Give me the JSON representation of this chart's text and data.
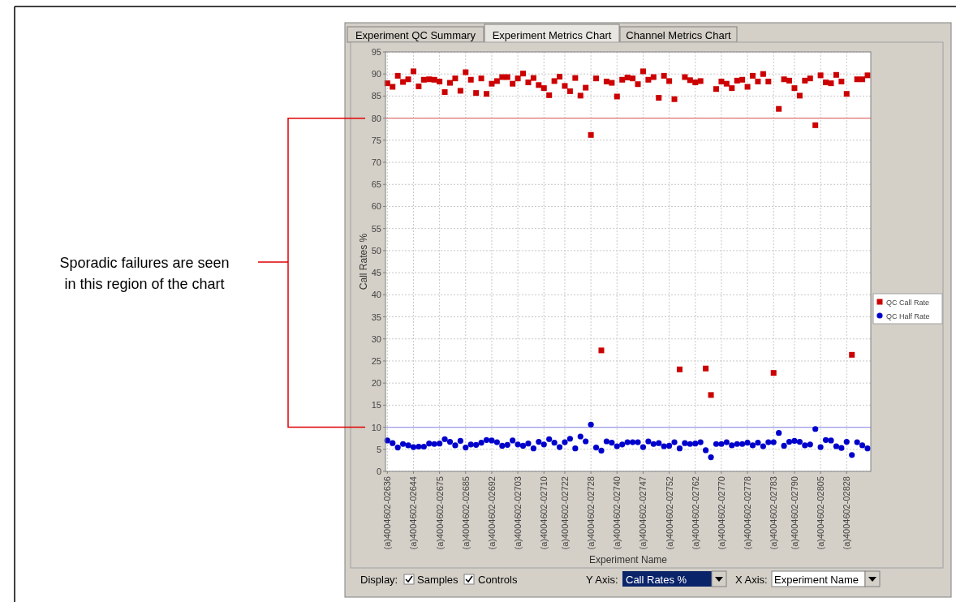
{
  "chart_data": {
    "type": "scatter",
    "categories": [
      "(a)4004602-02636",
      null,
      null,
      null,
      null,
      "(a)4004602-02644",
      null,
      null,
      null,
      null,
      "(a)4004602-02675",
      null,
      null,
      null,
      null,
      "(a)4004602-02685",
      null,
      null,
      null,
      null,
      "(a)4004602-02692",
      null,
      null,
      null,
      null,
      "(a)4004602-02703",
      null,
      null,
      null,
      null,
      "(a)4004602-02710",
      null,
      null,
      null,
      "(a)4004602-02722",
      null,
      null,
      null,
      null,
      "(a)4004602-02728",
      null,
      null,
      null,
      null,
      "(a)4004602-02740",
      null,
      null,
      null,
      null,
      "(a)4004602-02747",
      null,
      null,
      null,
      null,
      "(a)4004602-02752",
      null,
      null,
      null,
      null,
      "(a)4004602-02762",
      null,
      null,
      null,
      null,
      "(a)4004602-02770",
      null,
      null,
      null,
      null,
      "(a)4004602-02778",
      null,
      null,
      null,
      null,
      "(a)4004602-02783",
      null,
      null,
      null,
      "(a)4004602-02790",
      null,
      null,
      null,
      null,
      "(a)4004602-02805",
      null,
      null,
      null,
      null,
      "(a)4004602-02828",
      null,
      null,
      null,
      null
    ],
    "series": [
      {
        "name": "QC Call Rate",
        "color": "#cc0000",
        "marker": "square",
        "values": [
          87.9,
          87.1,
          89.6,
          88.2,
          88.8,
          90.6,
          87.2,
          88.7,
          88.8,
          88.7,
          88.3,
          85.9,
          88.0,
          89.0,
          86.2,
          90.4,
          88.7,
          85.7,
          89.0,
          85.5,
          87.8,
          88.4,
          89.3,
          89.3,
          87.8,
          89.0,
          90.1,
          88.1,
          89.1,
          87.5,
          86.8,
          85.2,
          88.4,
          89.4,
          87.3,
          86.1,
          89.1,
          85.1,
          86.9,
          76.2,
          89.0,
          27.4,
          88.3,
          88.0,
          84.9,
          88.7,
          89.2,
          89.0,
          87.7,
          90.6,
          88.7,
          89.3,
          84.6,
          89.6,
          88.4,
          84.3,
          23.1,
          89.3,
          88.6,
          88.1,
          88.4,
          23.3,
          17.3,
          86.6,
          88.3,
          87.8,
          86.8,
          88.5,
          88.7,
          87.1,
          89.6,
          88.3,
          90.0,
          88.3,
          22.3,
          82.1,
          88.8,
          88.5,
          86.8,
          85.1,
          88.5,
          89.0,
          78.4,
          89.7,
          88.1,
          87.9,
          89.8,
          88.3,
          85.5,
          26.4,
          88.8,
          88.8,
          89.7
        ]
      },
      {
        "name": "QC Half Rate",
        "color": "#0000cc",
        "marker": "circle",
        "values": [
          7.0,
          6.4,
          5.4,
          6.2,
          5.9,
          5.5,
          5.6,
          5.6,
          6.3,
          6.2,
          6.3,
          7.3,
          6.7,
          5.9,
          6.9,
          5.4,
          6.1,
          6.0,
          6.5,
          7.1,
          7.0,
          6.6,
          5.8,
          6.0,
          7.0,
          6.1,
          5.8,
          6.3,
          5.2,
          6.7,
          6.1,
          7.3,
          6.5,
          5.5,
          6.6,
          7.4,
          5.2,
          7.9,
          6.8,
          10.6,
          5.4,
          4.7,
          6.8,
          6.5,
          5.7,
          6.1,
          6.6,
          6.6,
          6.6,
          5.5,
          6.8,
          6.2,
          6.4,
          5.7,
          5.8,
          6.6,
          5.2,
          6.4,
          6.2,
          6.3,
          6.6,
          4.8,
          3.2,
          6.2,
          6.2,
          6.6,
          5.9,
          6.2,
          6.2,
          6.5,
          5.9,
          6.5,
          5.7,
          6.6,
          6.6,
          8.7,
          5.8,
          6.7,
          6.9,
          6.7,
          5.9,
          6.1,
          9.6,
          5.5,
          7.1,
          7.0,
          5.7,
          5.3,
          6.7,
          3.7,
          6.6,
          5.9,
          5.2
        ]
      }
    ],
    "xlabel": "Experiment Name",
    "ylabel": "Call Rates %",
    "ylim": [
      0,
      95
    ],
    "yticks": [
      0,
      5,
      10,
      15,
      20,
      25,
      30,
      35,
      40,
      45,
      50,
      55,
      60,
      65,
      70,
      75,
      80,
      85,
      90,
      95
    ],
    "grid": true,
    "legend": "right",
    "ref_lines": [
      {
        "axis": "y",
        "value": 80,
        "color": "#e07070"
      },
      {
        "axis": "y",
        "value": 10,
        "color": "#9c9cec"
      }
    ],
    "annotations": [
      "Sporadic failures are seen in this region of the chart",
      "Experiment QC Summary",
      "Experiment Metrics Chart",
      "Channel Metrics Chart",
      "Display:",
      "Samples",
      "Controls",
      "Y Axis:",
      "Call Rates %",
      "X Axis:",
      "Experiment Name"
    ]
  }
}
